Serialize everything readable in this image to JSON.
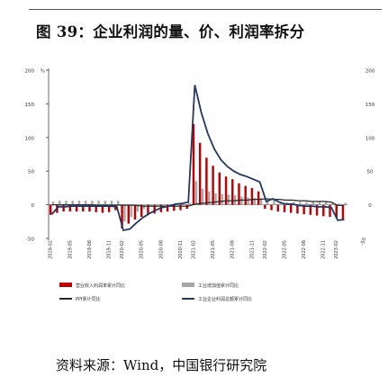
{
  "figure": {
    "title": "图 39：企业利润的量、价、利润率拆分",
    "source": "资料来源：Wind，中国银行研究院"
  },
  "chart_data": {
    "type": "bar",
    "left_axis": {
      "unit": "%",
      "ticks": [
        200,
        150,
        100,
        50,
        0,
        -50
      ],
      "range": [
        -50,
        200
      ]
    },
    "right_axis": {
      "ticks": [
        200,
        150,
        100,
        50,
        0,
        -50
      ],
      "range": [
        -50,
        200
      ]
    },
    "x_ticks": [
      "2019-02",
      "2019-05",
      "2019-08",
      "2019-11",
      "2020-02",
      "2020-05",
      "2020-08",
      "2020-11",
      "2021-02",
      "2021-05",
      "2021-08",
      "2021-11",
      "2022-02",
      "2022-05",
      "2022-08",
      "2022-11",
      "2023-02"
    ],
    "categories": [
      "2019-02",
      "2019-03",
      "2019-04",
      "2019-05",
      "2019-06",
      "2019-07",
      "2019-08",
      "2019-09",
      "2019-10",
      "2019-11",
      "2019-12",
      "2020-02",
      "2020-03",
      "2020-04",
      "2020-05",
      "2020-06",
      "2020-07",
      "2020-08",
      "2020-09",
      "2020-10",
      "2020-11",
      "2020-12",
      "2021-02",
      "2021-03",
      "2021-04",
      "2021-05",
      "2021-06",
      "2021-07",
      "2021-08",
      "2021-09",
      "2021-10",
      "2021-11",
      "2021-12",
      "2022-02",
      "2022-03",
      "2022-04",
      "2022-05",
      "2022-06",
      "2022-07",
      "2022-08",
      "2022-09",
      "2022-10",
      "2022-11",
      "2022-12",
      "2023-02",
      "2023-03"
    ],
    "series": [
      {
        "name": "营业收入利润率累计同比",
        "type": "bar",
        "color": "#c00000",
        "values": [
          -15,
          -12,
          -10,
          -10,
          -10,
          -10,
          -10,
          -11,
          -12,
          -11,
          -8,
          -35,
          -28,
          -22,
          -18,
          -15,
          -13,
          -11,
          -10,
          -9,
          -8,
          -6,
          120,
          92,
          70,
          58,
          48,
          42,
          38,
          32,
          28,
          25,
          20,
          -6,
          -8,
          -10,
          -11,
          -12,
          -13,
          -14,
          -15,
          -16,
          -17,
          -18,
          -20,
          -22
        ]
      },
      {
        "name": "工业增加值累计同比",
        "type": "bar",
        "color": "#a6a6a6",
        "values": [
          5,
          6,
          6,
          6,
          6,
          6,
          6,
          6,
          6,
          6,
          6,
          -25,
          -18,
          -10,
          -6,
          -3,
          -1,
          0,
          1,
          2,
          3,
          3,
          35,
          24,
          20,
          17,
          16,
          15,
          14,
          12,
          11,
          10,
          10,
          7,
          7,
          4,
          4,
          4,
          4,
          4,
          4,
          4,
          4,
          4,
          2,
          3
        ]
      },
      {
        "name": "PPI累计同比",
        "type": "line",
        "color": "#262626",
        "values": [
          0,
          0,
          0,
          0,
          0,
          0,
          0,
          -0.5,
          -0.5,
          -0.5,
          -0.5,
          -0.5,
          -0.5,
          -1,
          -2,
          -2,
          -2,
          -2,
          -2,
          -2,
          -2,
          -2,
          1,
          2,
          3,
          4,
          5,
          6,
          6,
          7,
          7,
          8,
          8,
          9,
          8,
          8,
          7,
          7,
          6,
          6,
          5,
          5,
          5,
          4,
          -1,
          -1
        ]
      },
      {
        "name": "工业企业利润总额累计同比",
        "type": "line",
        "color": "#1f3864",
        "values": [
          -14,
          -3,
          -3,
          -2,
          -2,
          -2,
          -2,
          -2,
          -2,
          -2,
          -3,
          -38,
          -36,
          -27,
          -19,
          -13,
          -8,
          -4,
          -2,
          1,
          2,
          4,
          178,
          137,
          106,
          83,
          67,
          57,
          50,
          45,
          42,
          38,
          34,
          5,
          9,
          4,
          1,
          1,
          -1,
          -2,
          -2,
          -3,
          -3,
          -4,
          -23,
          -22
        ]
      }
    ],
    "legend": {
      "position": "bottom"
    }
  }
}
